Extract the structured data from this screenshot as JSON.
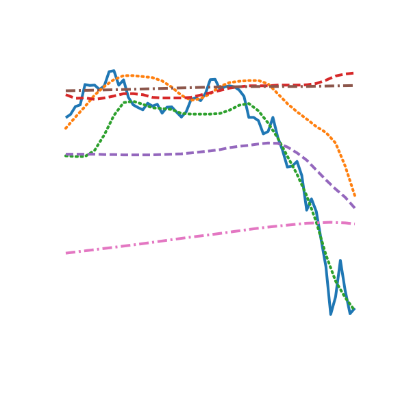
{
  "chart_data": {
    "type": "line",
    "title": "",
    "xlabel": "",
    "ylabel": "",
    "axes_visible": false,
    "grid": false,
    "legend": "none",
    "xlim": [
      0,
      60
    ],
    "ylim": [
      0,
      1
    ],
    "series": [
      {
        "color": "#1f77b4",
        "style": "solid",
        "x": [
          0,
          1,
          2,
          3,
          4,
          5,
          6,
          7,
          8,
          9,
          10,
          11,
          12,
          13,
          14,
          15,
          16,
          17,
          18,
          19,
          20,
          21,
          22,
          23,
          24,
          25,
          26,
          27,
          28,
          29,
          30,
          31,
          32,
          33,
          34,
          35,
          36,
          37,
          38,
          39,
          40,
          41,
          42,
          43,
          44,
          45,
          46,
          47,
          48,
          49,
          50,
          51,
          52,
          53,
          54,
          55,
          56,
          57,
          58,
          59,
          60
        ],
        "values": [
          0.767,
          0.777,
          0.801,
          0.806,
          0.868,
          0.865,
          0.866,
          0.853,
          0.864,
          0.907,
          0.91,
          0.866,
          0.882,
          0.829,
          0.806,
          0.798,
          0.791,
          0.811,
          0.802,
          0.808,
          0.781,
          0.799,
          0.8,
          0.784,
          0.769,
          0.785,
          0.822,
          0.828,
          0.819,
          0.841,
          0.883,
          0.884,
          0.853,
          0.861,
          0.864,
          0.861,
          0.851,
          0.832,
          0.768,
          0.768,
          0.758,
          0.718,
          0.725,
          0.768,
          0.707,
          0.668,
          0.617,
          0.62,
          0.634,
          0.591,
          0.486,
          0.52,
          0.482,
          0.396,
          0.314,
          0.169,
          0.222,
          0.333,
          0.241,
          0.171,
          0.188
        ]
      },
      {
        "color": "#ff7f0e",
        "style": "dotted",
        "x": [
          0,
          2,
          4,
          6,
          8,
          10,
          12,
          14,
          16,
          18,
          20,
          22,
          24,
          26,
          28,
          30,
          32,
          34,
          36,
          38,
          40,
          42,
          44,
          46,
          48,
          50,
          52,
          54,
          56,
          58,
          60
        ],
        "values": [
          0.735,
          0.769,
          0.801,
          0.836,
          0.862,
          0.883,
          0.895,
          0.895,
          0.892,
          0.889,
          0.879,
          0.86,
          0.835,
          0.82,
          0.825,
          0.84,
          0.862,
          0.874,
          0.878,
          0.88,
          0.88,
          0.87,
          0.84,
          0.81,
          0.785,
          0.763,
          0.74,
          0.722,
          0.69,
          0.62,
          0.53
        ]
      },
      {
        "color": "#2ca02c",
        "style": "dotted",
        "x": [
          0,
          2,
          4,
          6,
          8,
          10,
          12,
          14,
          16,
          18,
          20,
          22,
          24,
          26,
          28,
          30,
          32,
          34,
          36,
          38,
          40,
          42,
          44,
          46,
          48,
          50,
          52,
          54,
          56,
          58,
          60
        ],
        "values": [
          0.651,
          0.649,
          0.649,
          0.668,
          0.715,
          0.774,
          0.813,
          0.817,
          0.808,
          0.797,
          0.795,
          0.792,
          0.78,
          0.778,
          0.778,
          0.778,
          0.78,
          0.79,
          0.805,
          0.81,
          0.788,
          0.751,
          0.705,
          0.65,
          0.595,
          0.53,
          0.45,
          0.35,
          0.27,
          0.22,
          0.18
        ]
      },
      {
        "color": "#d62728",
        "style": "dashed",
        "x": [
          0,
          2,
          4,
          6,
          8,
          10,
          12,
          14,
          16,
          18,
          20,
          22,
          24,
          26,
          28,
          30,
          32,
          34,
          36,
          38,
          40,
          42,
          44,
          46,
          48,
          50,
          52,
          54,
          56,
          58,
          60
        ],
        "values": [
          0.837,
          0.826,
          0.827,
          0.823,
          0.827,
          0.833,
          0.84,
          0.84,
          0.837,
          0.829,
          0.827,
          0.827,
          0.827,
          0.829,
          0.836,
          0.843,
          0.85,
          0.857,
          0.861,
          0.864,
          0.864,
          0.864,
          0.866,
          0.866,
          0.866,
          0.867,
          0.871,
          0.881,
          0.894,
          0.9,
          0.903
        ]
      },
      {
        "color": "#9467bd",
        "style": "dashed",
        "x": [
          0,
          2,
          4,
          6,
          8,
          10,
          12,
          14,
          16,
          18,
          20,
          22,
          24,
          26,
          28,
          30,
          32,
          34,
          36,
          38,
          40,
          42,
          44,
          46,
          48,
          50,
          52,
          54,
          56,
          58,
          60
        ],
        "values": [
          0.656,
          0.656,
          0.656,
          0.656,
          0.655,
          0.655,
          0.654,
          0.654,
          0.654,
          0.654,
          0.655,
          0.656,
          0.657,
          0.66,
          0.663,
          0.666,
          0.67,
          0.676,
          0.68,
          0.683,
          0.687,
          0.69,
          0.689,
          0.678,
          0.66,
          0.638,
          0.608,
          0.578,
          0.55,
          0.525,
          0.492
        ]
      },
      {
        "color": "#8c564b",
        "style": "dashdot",
        "x": [
          0,
          10,
          20,
          30,
          40,
          50,
          60
        ],
        "values": [
          0.849,
          0.852,
          0.856,
          0.86,
          0.862,
          0.862,
          0.865
        ]
      },
      {
        "color": "#e377c2",
        "style": "dashdot",
        "x": [
          0,
          5,
          10,
          15,
          20,
          25,
          30,
          35,
          40,
          45,
          50,
          55,
          58,
          60
        ],
        "values": [
          0.355,
          0.364,
          0.373,
          0.382,
          0.392,
          0.402,
          0.411,
          0.421,
          0.431,
          0.439,
          0.446,
          0.449,
          0.447,
          0.444
        ]
      }
    ]
  }
}
